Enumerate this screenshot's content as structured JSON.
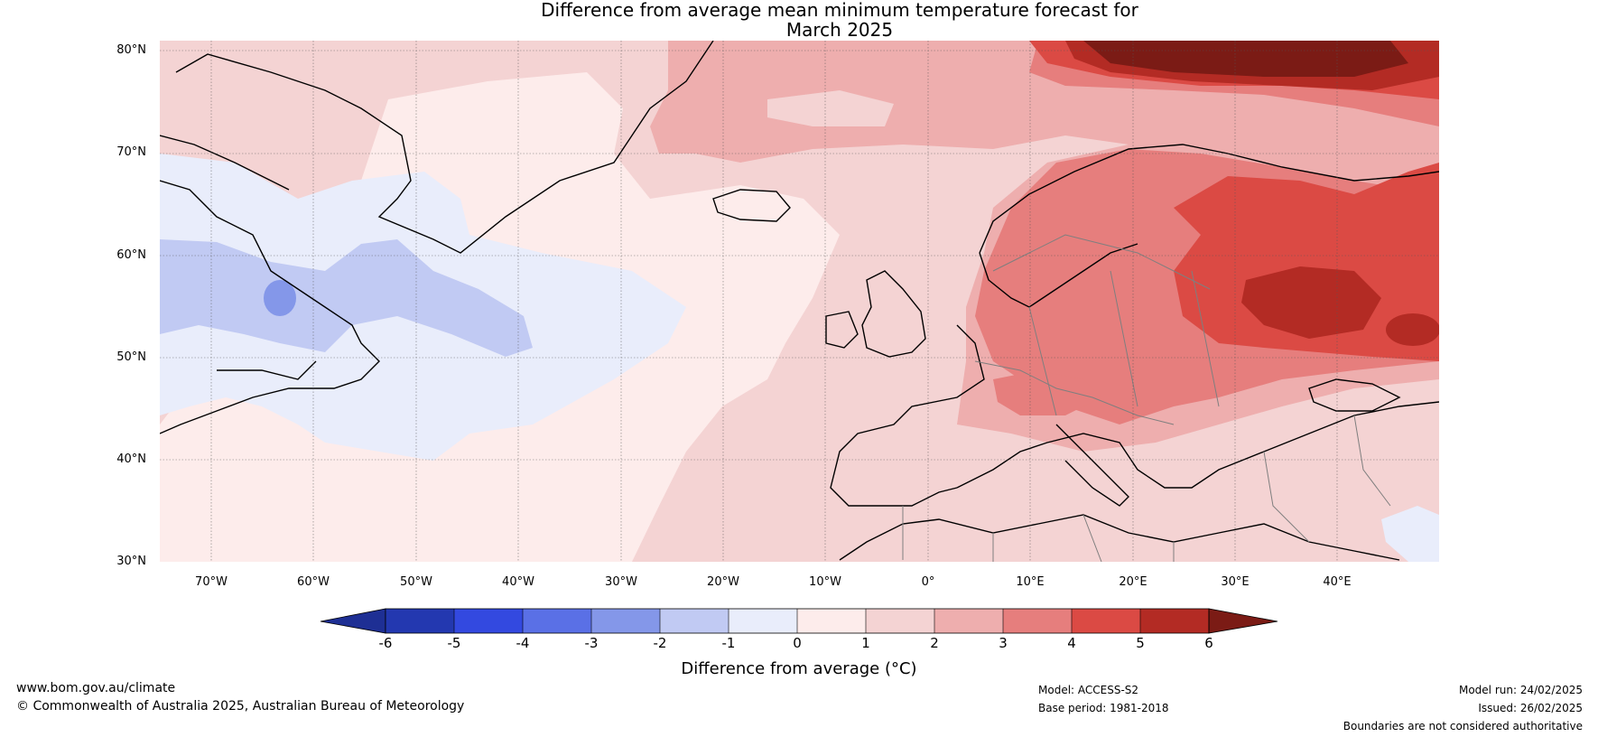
{
  "title": {
    "line1": "Difference from average mean minimum temperature forecast for",
    "line2": "March 2025"
  },
  "map": {
    "projection": "equirectangular",
    "lon_range": [
      -75,
      50
    ],
    "lat_range": [
      30,
      81
    ],
    "lat_labels": [
      "80°N",
      "70°N",
      "60°N",
      "50°N",
      "40°N",
      "30°N"
    ],
    "lon_labels": [
      "70°W",
      "60°W",
      "50°W",
      "40°W",
      "30°W",
      "20°W",
      "10°W",
      "0°",
      "10°E",
      "20°E",
      "30°E",
      "40°E"
    ],
    "gridlines": true,
    "coastline_color": "#000000",
    "border_color": "#808080",
    "anomaly_regions": [
      {
        "category": "+0 to +1",
        "color": "#fdeceb",
        "area": "central North Atlantic"
      },
      {
        "category": "+1 to +2",
        "color": "#f4d3d3",
        "area": "Western Europe, Mediterranean"
      },
      {
        "category": "+2 to +3",
        "color": "#eeaeae",
        "area": "Norwegian Sea, Arctic"
      },
      {
        "category": "+3 to +4",
        "color": "#e67e7d",
        "area": "Scandinavia, Central Europe"
      },
      {
        "category": "+4 to +5",
        "color": "#db4a44",
        "area": "Eastern Europe, Barents region"
      },
      {
        "category": "+5 to +6",
        "color": "#b32b24",
        "area": "Western Russia"
      },
      {
        "category": ">+6",
        "color": "#7b1b15",
        "area": "Svalbard / Barents Sea"
      },
      {
        "category": "-1 to 0",
        "color": "#e9edfb",
        "area": "Labrador Sea, western Atlantic"
      },
      {
        "category": "-2 to -1",
        "color": "#c1caf3",
        "area": "Labrador Sea"
      },
      {
        "category": "-3 to -2",
        "color": "#8497e9",
        "area": "off Labrador"
      }
    ]
  },
  "colorbar": {
    "labels": [
      "-6",
      "-5",
      "-4",
      "-3",
      "-2",
      "-1",
      "0",
      "1",
      "2",
      "3",
      "4",
      "5",
      "6"
    ],
    "colors": [
      "#1e2f94",
      "#2338b0",
      "#3349e0",
      "#5a70e6",
      "#8497e9",
      "#c1caf3",
      "#e9edfb",
      "#fdeceb",
      "#f4d3d3",
      "#eeaeae",
      "#e67e7d",
      "#db4a44",
      "#b32b24",
      "#7b1b15"
    ],
    "title": "Difference from average (°C)"
  },
  "footer": {
    "url": "www.bom.gov.au/climate",
    "copyright": "© Commonwealth of Australia 2025, Australian Bureau of Meteorology",
    "model": "Model: ACCESS-S2",
    "base_period": "Base period: 1981-2018",
    "model_run": "Model run: 24/02/2025",
    "issued": "Issued: 26/02/2025",
    "disclaimer": "Boundaries are not considered authoritative"
  }
}
